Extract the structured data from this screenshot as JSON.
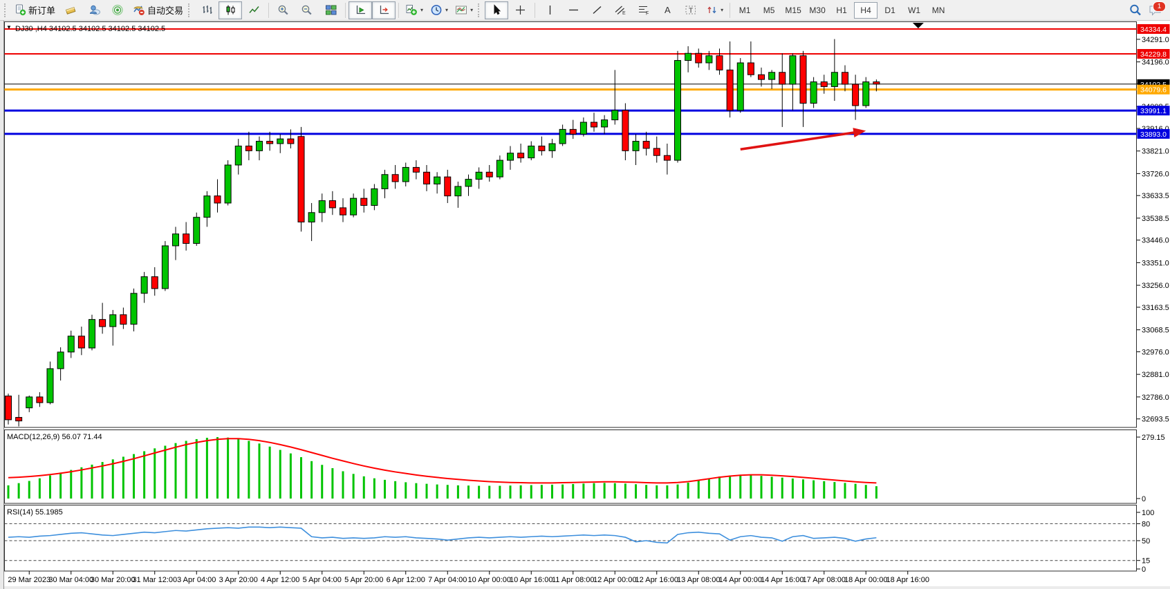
{
  "toolbar": {
    "new_order": "新订单",
    "auto_trading": "自动交易",
    "timeframes": [
      "M1",
      "M5",
      "M15",
      "M30",
      "H1",
      "H4",
      "D1",
      "W1",
      "MN"
    ],
    "active_timeframe": "H4",
    "chat_badge": "1"
  },
  "chart": {
    "title_marker": "▼",
    "title": "DJ30 ,H4  34102.5 34102.5 34102.5 34102.5",
    "symbol": "DJ30",
    "period": "H4"
  },
  "chart_data": {
    "type": "candlestick",
    "title": "DJ30 ,H4  34102.5 34102.5 34102.5 34102.5",
    "last_price": 34102.5,
    "ylim": [
      32660,
      34370
    ],
    "grid": false,
    "colors": {
      "up": "#00c400",
      "down": "#ff0000",
      "wick": "#000000",
      "macd_hist": "#00c400",
      "macd_signal": "#ff0000",
      "rsi": "#3d8fdd",
      "level_red": "#ee0000",
      "level_orange": "#ffa800",
      "level_blue": "#0000e0",
      "current": "#000000"
    },
    "x_labels": [
      "29 Mar 2023",
      "30 Mar 04:00",
      "30 Mar 20:00",
      "31 Mar 12:00",
      "3 Apr 04:00",
      "3 Apr 20:00",
      "4 Apr 12:00",
      "5 Apr 04:00",
      "5 Apr 20:00",
      "6 Apr 12:00",
      "7 Apr 04:00",
      "10 Apr 00:00",
      "10 Apr 16:00",
      "11 Apr 08:00",
      "12 Apr 00:00",
      "12 Apr 16:00",
      "13 Apr 08:00",
      "14 Apr 00:00",
      "14 Apr 16:00",
      "17 Apr 08:00",
      "18 Apr 00:00",
      "18 Apr 16:00"
    ],
    "first_label_bar": 2,
    "label_every_bars": 4,
    "price_ticks": [
      34291.0,
      34196.0,
      34103.5,
      34008.5,
      33916.0,
      33821.0,
      33726.0,
      33633.5,
      33538.5,
      33446.0,
      33351.0,
      33256.0,
      33163.5,
      33068.5,
      32976.0,
      32881.0,
      32786.0,
      32693.5
    ],
    "levels": [
      {
        "price": 34334.4,
        "label": "34334.4",
        "color": "#ee0000",
        "width": 2
      },
      {
        "price": 34229.8,
        "label": "34229.8",
        "color": "#ee0000",
        "width": 2
      },
      {
        "price": 34102.5,
        "label": "34102.5",
        "color": "#000000",
        "width": 1,
        "current": true
      },
      {
        "price": 34079.6,
        "label": "34079.6",
        "color": "#ffa800",
        "width": 3
      },
      {
        "price": 33991.1,
        "label": "33991.1",
        "color": "#0000e0",
        "width": 3
      },
      {
        "price": 33893.0,
        "label": "33893.0",
        "color": "#0000e0",
        "width": 3
      }
    ],
    "candles": [
      [
        32790,
        32800,
        32670,
        32690
      ],
      [
        32700,
        32795,
        32662,
        32685
      ],
      [
        32740,
        32792,
        32722,
        32786
      ],
      [
        32786,
        32806,
        32744,
        32762
      ],
      [
        32762,
        32935,
        32755,
        32905
      ],
      [
        32905,
        32995,
        32855,
        32975
      ],
      [
        32975,
        33065,
        32950,
        33042
      ],
      [
        33042,
        33082,
        32962,
        32992
      ],
      [
        32992,
        33132,
        32982,
        33112
      ],
      [
        33112,
        33182,
        33052,
        33082
      ],
      [
        33082,
        33152,
        33002,
        33132
      ],
      [
        33132,
        33162,
        33072,
        33092
      ],
      [
        33092,
        33242,
        33062,
        33222
      ],
      [
        33222,
        33312,
        33182,
        33292
      ],
      [
        33292,
        33332,
        33212,
        33242
      ],
      [
        33242,
        33442,
        33232,
        33422
      ],
      [
        33422,
        33502,
        33362,
        33472
      ],
      [
        33472,
        33522,
        33402,
        33432
      ],
      [
        33432,
        33562,
        33422,
        33542
      ],
      [
        33542,
        33652,
        33502,
        33632
      ],
      [
        33632,
        33702,
        33562,
        33602
      ],
      [
        33602,
        33782,
        33592,
        33762
      ],
      [
        33762,
        33872,
        33722,
        33842
      ],
      [
        33842,
        33902,
        33782,
        33822
      ],
      [
        33822,
        33882,
        33782,
        33862
      ],
      [
        33862,
        33902,
        33822,
        33852
      ],
      [
        33852,
        33892,
        33812,
        33872
      ],
      [
        33872,
        33912,
        33832,
        33852
      ],
      [
        33882,
        33922,
        33482,
        33522
      ],
      [
        33522,
        33602,
        33442,
        33562
      ],
      [
        33562,
        33642,
        33522,
        33612
      ],
      [
        33612,
        33652,
        33552,
        33582
      ],
      [
        33582,
        33622,
        33522,
        33552
      ],
      [
        33552,
        33642,
        33542,
        33622
      ],
      [
        33622,
        33662,
        33562,
        33592
      ],
      [
        33592,
        33682,
        33572,
        33662
      ],
      [
        33662,
        33742,
        33622,
        33722
      ],
      [
        33722,
        33762,
        33662,
        33692
      ],
      [
        33692,
        33772,
        33672,
        33752
      ],
      [
        33752,
        33782,
        33702,
        33732
      ],
      [
        33732,
        33762,
        33652,
        33682
      ],
      [
        33682,
        33732,
        33642,
        33712
      ],
      [
        33712,
        33742,
        33602,
        33632
      ],
      [
        33632,
        33692,
        33582,
        33672
      ],
      [
        33672,
        33722,
        33632,
        33702
      ],
      [
        33702,
        33752,
        33662,
        33732
      ],
      [
        33732,
        33762,
        33692,
        33712
      ],
      [
        33712,
        33802,
        33702,
        33782
      ],
      [
        33782,
        33842,
        33742,
        33812
      ],
      [
        33812,
        33852,
        33772,
        33792
      ],
      [
        33792,
        33862,
        33782,
        33842
      ],
      [
        33842,
        33882,
        33802,
        33822
      ],
      [
        33822,
        33872,
        33792,
        33852
      ],
      [
        33852,
        33932,
        33842,
        33912
      ],
      [
        33912,
        33952,
        33872,
        33892
      ],
      [
        33892,
        33962,
        33882,
        33942
      ],
      [
        33942,
        33982,
        33902,
        33922
      ],
      [
        33922,
        33972,
        33892,
        33952
      ],
      [
        33952,
        34162,
        33932,
        33992
      ],
      [
        33992,
        34022,
        33782,
        33822
      ],
      [
        33822,
        33892,
        33762,
        33862
      ],
      [
        33862,
        33902,
        33802,
        33832
      ],
      [
        33832,
        33882,
        33772,
        33802
      ],
      [
        33802,
        33852,
        33722,
        33782
      ],
      [
        33782,
        34242,
        33772,
        34202
      ],
      [
        34202,
        34262,
        34152,
        34232
      ],
      [
        34232,
        34252,
        34172,
        34192
      ],
      [
        34192,
        34242,
        34162,
        34222
      ],
      [
        34222,
        34252,
        34142,
        34162
      ],
      [
        34162,
        34282,
        33962,
        33992
      ],
      [
        33992,
        34212,
        33982,
        34192
      ],
      [
        34192,
        34282,
        34132,
        34142
      ],
      [
        34142,
        34172,
        34092,
        34122
      ],
      [
        34122,
        34162,
        34082,
        34152
      ],
      [
        34152,
        34232,
        33922,
        34102
      ],
      [
        34102,
        34232,
        33992,
        34222
      ],
      [
        34222,
        34242,
        33922,
        34022
      ],
      [
        34022,
        34132,
        34002,
        34112
      ],
      [
        34112,
        34142,
        34062,
        34092
      ],
      [
        34092,
        34292,
        34032,
        34152
      ],
      [
        34152,
        34182,
        34072,
        34102
      ],
      [
        34102,
        34142,
        33952,
        34012
      ],
      [
        34012,
        34132,
        34002,
        34112
      ],
      [
        34112,
        34122,
        34072,
        34102.5
      ]
    ],
    "macd": {
      "label": "MACD(12,26,9) 56.07 71.44",
      "params": [
        12,
        26,
        9
      ],
      "macd_current": 56.07,
      "signal_current": 71.44,
      "ticks": [
        279.15,
        0
      ],
      "ylim": [
        -20,
        310
      ],
      "histogram": [
        60,
        70,
        80,
        92,
        105,
        118,
        130,
        142,
        154,
        166,
        178,
        190,
        202,
        215,
        228,
        240,
        252,
        262,
        270,
        276,
        279,
        277,
        271,
        262,
        250,
        236,
        221,
        205,
        188,
        170,
        153,
        138,
        124,
        112,
        101,
        92,
        85,
        79,
        74,
        70,
        67,
        64,
        62,
        60,
        59,
        58,
        58,
        58,
        59,
        60,
        61,
        62,
        63,
        64,
        66,
        68,
        70,
        71,
        70,
        68,
        65,
        62,
        60,
        60,
        64,
        72,
        82,
        92,
        100,
        105,
        107,
        106,
        103,
        99,
        95,
        91,
        87,
        83,
        79,
        75,
        71,
        67,
        62,
        56
      ],
      "signal": [
        95,
        97,
        100,
        104,
        109,
        115,
        122,
        130,
        139,
        148,
        158,
        169,
        181,
        194,
        207,
        220,
        233,
        245,
        255,
        263,
        269,
        272,
        272,
        269,
        263,
        255,
        245,
        234,
        222,
        209,
        196,
        183,
        171,
        159,
        148,
        138,
        129,
        121,
        114,
        107,
        101,
        96,
        91,
        87,
        83,
        80,
        77,
        75,
        73,
        72,
        71,
        71,
        71,
        72,
        73,
        74,
        75,
        76,
        76,
        75,
        74,
        72,
        71,
        71,
        73,
        77,
        83,
        90,
        97,
        102,
        106,
        108,
        108,
        106,
        103,
        100,
        96,
        92,
        88,
        84,
        80,
        76,
        73,
        71
      ]
    },
    "rsi": {
      "label": "RSI(14) 55.1985",
      "period": 14,
      "current": 55.1985,
      "ticks": [
        100,
        80,
        50,
        15,
        0
      ],
      "dashed_levels": [
        80,
        50,
        15
      ],
      "ylim": [
        -6,
        110
      ],
      "values": [
        56,
        57,
        56,
        58,
        59,
        61,
        63,
        64,
        62,
        60,
        59,
        61,
        63,
        65,
        64,
        66,
        68,
        67,
        69,
        71,
        72,
        73,
        72,
        74,
        74,
        73,
        74,
        73,
        72,
        57,
        55,
        56,
        54,
        55,
        54,
        55,
        57,
        56,
        57,
        55,
        54,
        53,
        51,
        53,
        55,
        56,
        55,
        56,
        57,
        56,
        57,
        58,
        57,
        58,
        59,
        60,
        59,
        60,
        59,
        56,
        48,
        50,
        47,
        46,
        61,
        64,
        65,
        63,
        62,
        51,
        57,
        59,
        56,
        55,
        49,
        57,
        59,
        54,
        55,
        56,
        54,
        49,
        53,
        55.2
      ]
    },
    "annotations": {
      "arrow": {
        "from_bar": 70,
        "from_price": 33828,
        "to_bar": 82,
        "to_price": 33906,
        "color": "#e01212"
      },
      "top_marker_bar": 87
    }
  }
}
